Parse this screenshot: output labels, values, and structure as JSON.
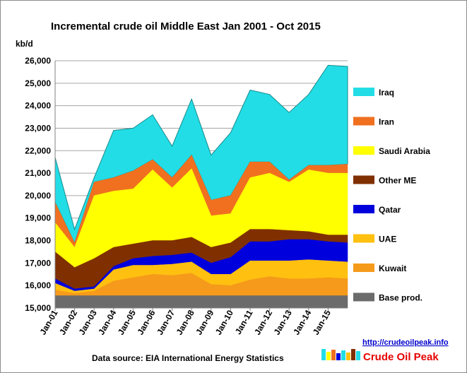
{
  "chart_data": {
    "type": "area",
    "title": "Incremental crude oil Middle East  Jan 2001 - Oct 2015",
    "ylabel": "kb/d",
    "xlabel": "",
    "ylim": [
      15000,
      26000
    ],
    "yticks": [
      15000,
      16000,
      17000,
      18000,
      19000,
      20000,
      21000,
      22000,
      23000,
      24000,
      25000,
      26000
    ],
    "ytick_labels": [
      "15,000",
      "16,000",
      "17,000",
      "18,000",
      "19,000",
      "20,000",
      "21,000",
      "22,000",
      "23,000",
      "24,000",
      "25,000",
      "26,000"
    ],
    "x": [
      "Jan-01",
      "Jan-02",
      "Jan-03",
      "Jan-04",
      "Jan-05",
      "Jan-06",
      "Jan-07",
      "Jan-08",
      "Jan-09",
      "Jan-10",
      "Jan-11",
      "Jan-12",
      "Jan-13",
      "Jan-14",
      "Jan-15",
      "Oct-15"
    ],
    "xtick_labels": [
      "Jan-01",
      "Jan-02",
      "Jan-03",
      "Jan-04",
      "Jan-05",
      "Jan-06",
      "Jan-07",
      "Jan-08",
      "Jan-09",
      "Jan-10",
      "Jan-11",
      "Jan-12",
      "Jan-13",
      "Jan-14",
      "Jan-15"
    ],
    "grid": true,
    "legend_position": "right",
    "series": [
      {
        "name": "Base prod.",
        "color": "#6b6b6b",
        "values": [
          15550,
          15550,
          15550,
          15550,
          15550,
          15550,
          15550,
          15550,
          15550,
          15550,
          15550,
          15550,
          15550,
          15550,
          15550,
          15550
        ]
      },
      {
        "name": "Kuwait",
        "color": "#f59a1a",
        "values": [
          15800,
          15650,
          15750,
          16200,
          16350,
          16500,
          16450,
          16550,
          16050,
          16000,
          16250,
          16400,
          16300,
          16300,
          16350,
          16300
        ]
      },
      {
        "name": "UAE",
        "color": "#ffc010",
        "values": [
          16100,
          15750,
          15850,
          16700,
          16900,
          16900,
          16950,
          17050,
          16500,
          16500,
          17100,
          17100,
          17100,
          17150,
          17100,
          17050
        ]
      },
      {
        "name": "Qatar",
        "color": "#0000dd",
        "values": [
          16300,
          15850,
          15950,
          16850,
          17200,
          17300,
          17350,
          17450,
          17000,
          17250,
          17950,
          17950,
          18050,
          18050,
          17950,
          17900
        ]
      },
      {
        "name": "Other ME",
        "color": "#803000",
        "values": [
          17500,
          16800,
          17200,
          17700,
          17850,
          18000,
          18000,
          18150,
          17700,
          17900,
          18500,
          18500,
          18450,
          18400,
          18250,
          18250
        ]
      },
      {
        "name": "Saudi Arabia",
        "color": "#ffff00",
        "values": [
          18800,
          17700,
          20000,
          20200,
          20300,
          21150,
          20350,
          21200,
          19100,
          19200,
          20800,
          21000,
          20600,
          21150,
          21000,
          21000
        ]
      },
      {
        "name": "Iran",
        "color": "#f07020",
        "values": [
          19700,
          17900,
          20600,
          20800,
          21100,
          21600,
          20800,
          21800,
          19800,
          20000,
          21500,
          21500,
          20700,
          21350,
          21350,
          21400
        ]
      },
      {
        "name": "Iraq",
        "color": "#22dde6",
        "values": [
          21700,
          18500,
          20800,
          22900,
          23000,
          23600,
          22200,
          24300,
          21800,
          22800,
          24700,
          24500,
          23700,
          24500,
          25800,
          25750
        ]
      }
    ]
  },
  "source_label": "Data source: EIA International Energy Statistics",
  "url_label": "http://crudeoilpeak.info",
  "brand_label": "Crude Oil Peak",
  "colors": {
    "grid": "#a6a6a6",
    "axis": "#808080",
    "plot_bg": "#ffffff"
  }
}
